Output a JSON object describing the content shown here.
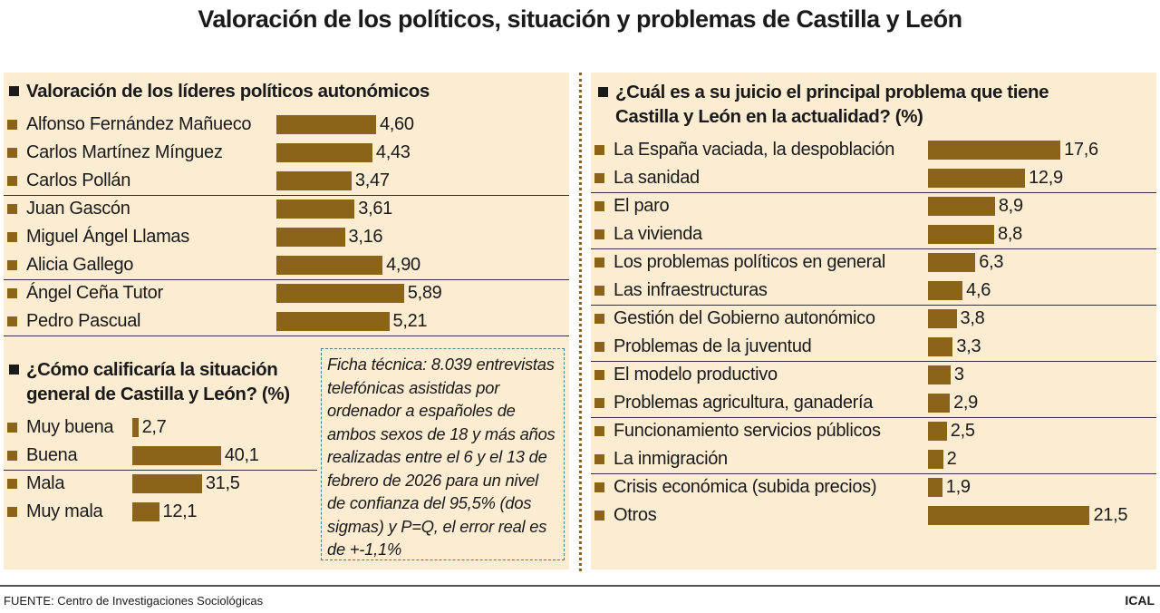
{
  "title": "Valoración de los políticos, situación y problemas de Castilla y León",
  "colors": {
    "bar": "#8b6419",
    "panel": "#fbecd2"
  },
  "chart_data": [
    {
      "type": "bar",
      "orientation": "horizontal",
      "title": "Valoración de los líderes políticos autonómicos",
      "categories": [
        "Alfonso Fernández Mañueco",
        "Carlos Martínez Mínguez",
        "Carlos Pollán",
        "Juan Gascón",
        "Miguel Ángel Llamas",
        "Alicia Gallego",
        "Ángel Ceña Tutor",
        "Pedro Pascual"
      ],
      "values": [
        4.6,
        4.43,
        3.47,
        3.61,
        3.16,
        4.9,
        5.89,
        5.21
      ],
      "labels": [
        "4,60",
        "4,43",
        "3,47",
        "3,61",
        "3,16",
        "4,90",
        "5,89",
        "5,21"
      ]
    },
    {
      "type": "bar",
      "orientation": "horizontal",
      "title": "¿Cómo calificaría la situación general de Castilla y León? (%)",
      "title_lines": [
        "¿Cómo calificaría la situación",
        "general de Castilla y León? (%)"
      ],
      "categories": [
        "Muy buena",
        "Buena",
        "Mala",
        "Muy mala"
      ],
      "values": [
        2.7,
        40.1,
        31.5,
        12.1
      ],
      "labels": [
        "2,7",
        "40,1",
        "31,5",
        "12,1"
      ]
    },
    {
      "type": "bar",
      "orientation": "horizontal",
      "title": "¿Cuál es a su juicio el principal problema que tiene Castilla y León en la actualidad? (%)",
      "title_lines": [
        "¿Cuál es a su juicio el principal problema que tiene",
        "Castilla y León en la actualidad? (%)"
      ],
      "categories": [
        "La España vaciada, la despoblación",
        "La sanidad",
        "El paro",
        "La vivienda",
        "Los problemas políticos en general",
        "Las infraestructuras",
        "Gestión del Gobierno autonómico",
        "Problemas de la juventud",
        "El modelo productivo",
        "Problemas agricultura, ganadería",
        "Funcionamiento servicios públicos",
        "La inmigración",
        "Crisis económica (subida precios)",
        "Otros"
      ],
      "values": [
        17.6,
        12.9,
        8.9,
        8.8,
        6.3,
        4.6,
        3.8,
        3.3,
        3,
        2.9,
        2.5,
        2,
        1.9,
        21.5
      ],
      "labels": [
        "17,6",
        "12,9",
        "8,9",
        "8,8",
        "6,3",
        "4,6",
        "3,8",
        "3,3",
        "3",
        "2,9",
        "2,5",
        "2",
        "1,9",
        "21,5"
      ]
    }
  ],
  "ficha": "Ficha técnica: 8.039 entrevistas telefónicas asistidas por ordenador a españoles de ambos sexos de 18 y más años realizadas entre el 6 y el 13 de febrero de 2026 para un nivel de confianza del 95,5% (dos sigmas) y P=Q, el error real es de +-1,1%",
  "source": "FUENTE: Centro de Investigaciones Sociológicas",
  "brand": "ICAL"
}
